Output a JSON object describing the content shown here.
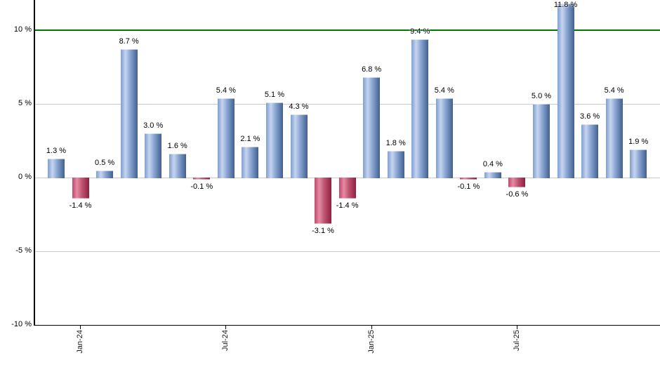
{
  "chart_data": {
    "type": "bar",
    "title": "",
    "unit": "%",
    "values": [
      1.3,
      -1.4,
      0.5,
      8.7,
      3.0,
      1.6,
      -0.1,
      5.4,
      2.1,
      5.1,
      4.3,
      -3.1,
      -1.4,
      6.8,
      1.8,
      9.4,
      5.4,
      -0.1,
      0.4,
      -0.6,
      5.0,
      11.8,
      3.6,
      5.4,
      1.9
    ],
    "bar_labels": [
      "1.3 %",
      "-1.4 %",
      "0.5 %",
      "8.7 %",
      "3.0 %",
      "1.6 %",
      "-0.1 %",
      "5.4 %",
      "2.1 %",
      "5.1 %",
      "4.3 %",
      "-3.1 %",
      "-1.4 %",
      "6.8 %",
      "1.8 %",
      "9.4 %",
      "5.4 %",
      "-0.1 %",
      "0.4 %",
      "-0.6 %",
      "5.0 %",
      "11.8 %",
      "3.6 %",
      "5.4 %",
      "1.9 %"
    ],
    "xticks": [
      {
        "label": "Jan-24",
        "bar_index": 1
      },
      {
        "label": "Jul-24",
        "bar_index": 7
      },
      {
        "label": "Jan-25",
        "bar_index": 13
      },
      {
        "label": "Jul-25",
        "bar_index": 19
      }
    ],
    "yticks": [
      {
        "label": "10 %",
        "value": 10
      },
      {
        "label": "5 %",
        "value": 5
      },
      {
        "label": "0 %",
        "value": 0
      },
      {
        "label": "-5 %",
        "value": -5
      },
      {
        "label": "-10 %",
        "value": -10
      }
    ],
    "ylim": [
      -10,
      12.1
    ],
    "grid": true,
    "legend": false,
    "reference_line": {
      "value": 10,
      "color": "#007600"
    },
    "colors": {
      "positive_bar": [
        "#7e9ed3",
        "#c6d5ee",
        "#8ba6d3",
        "#41608f"
      ],
      "negative_bar": [
        "#c4476a",
        "#e58ba4",
        "#c25874",
        "#8e2040"
      ],
      "gridline": "#c9c9c9",
      "axis": "#000000",
      "label_text": "#000000",
      "background": "#ffffff"
    }
  }
}
